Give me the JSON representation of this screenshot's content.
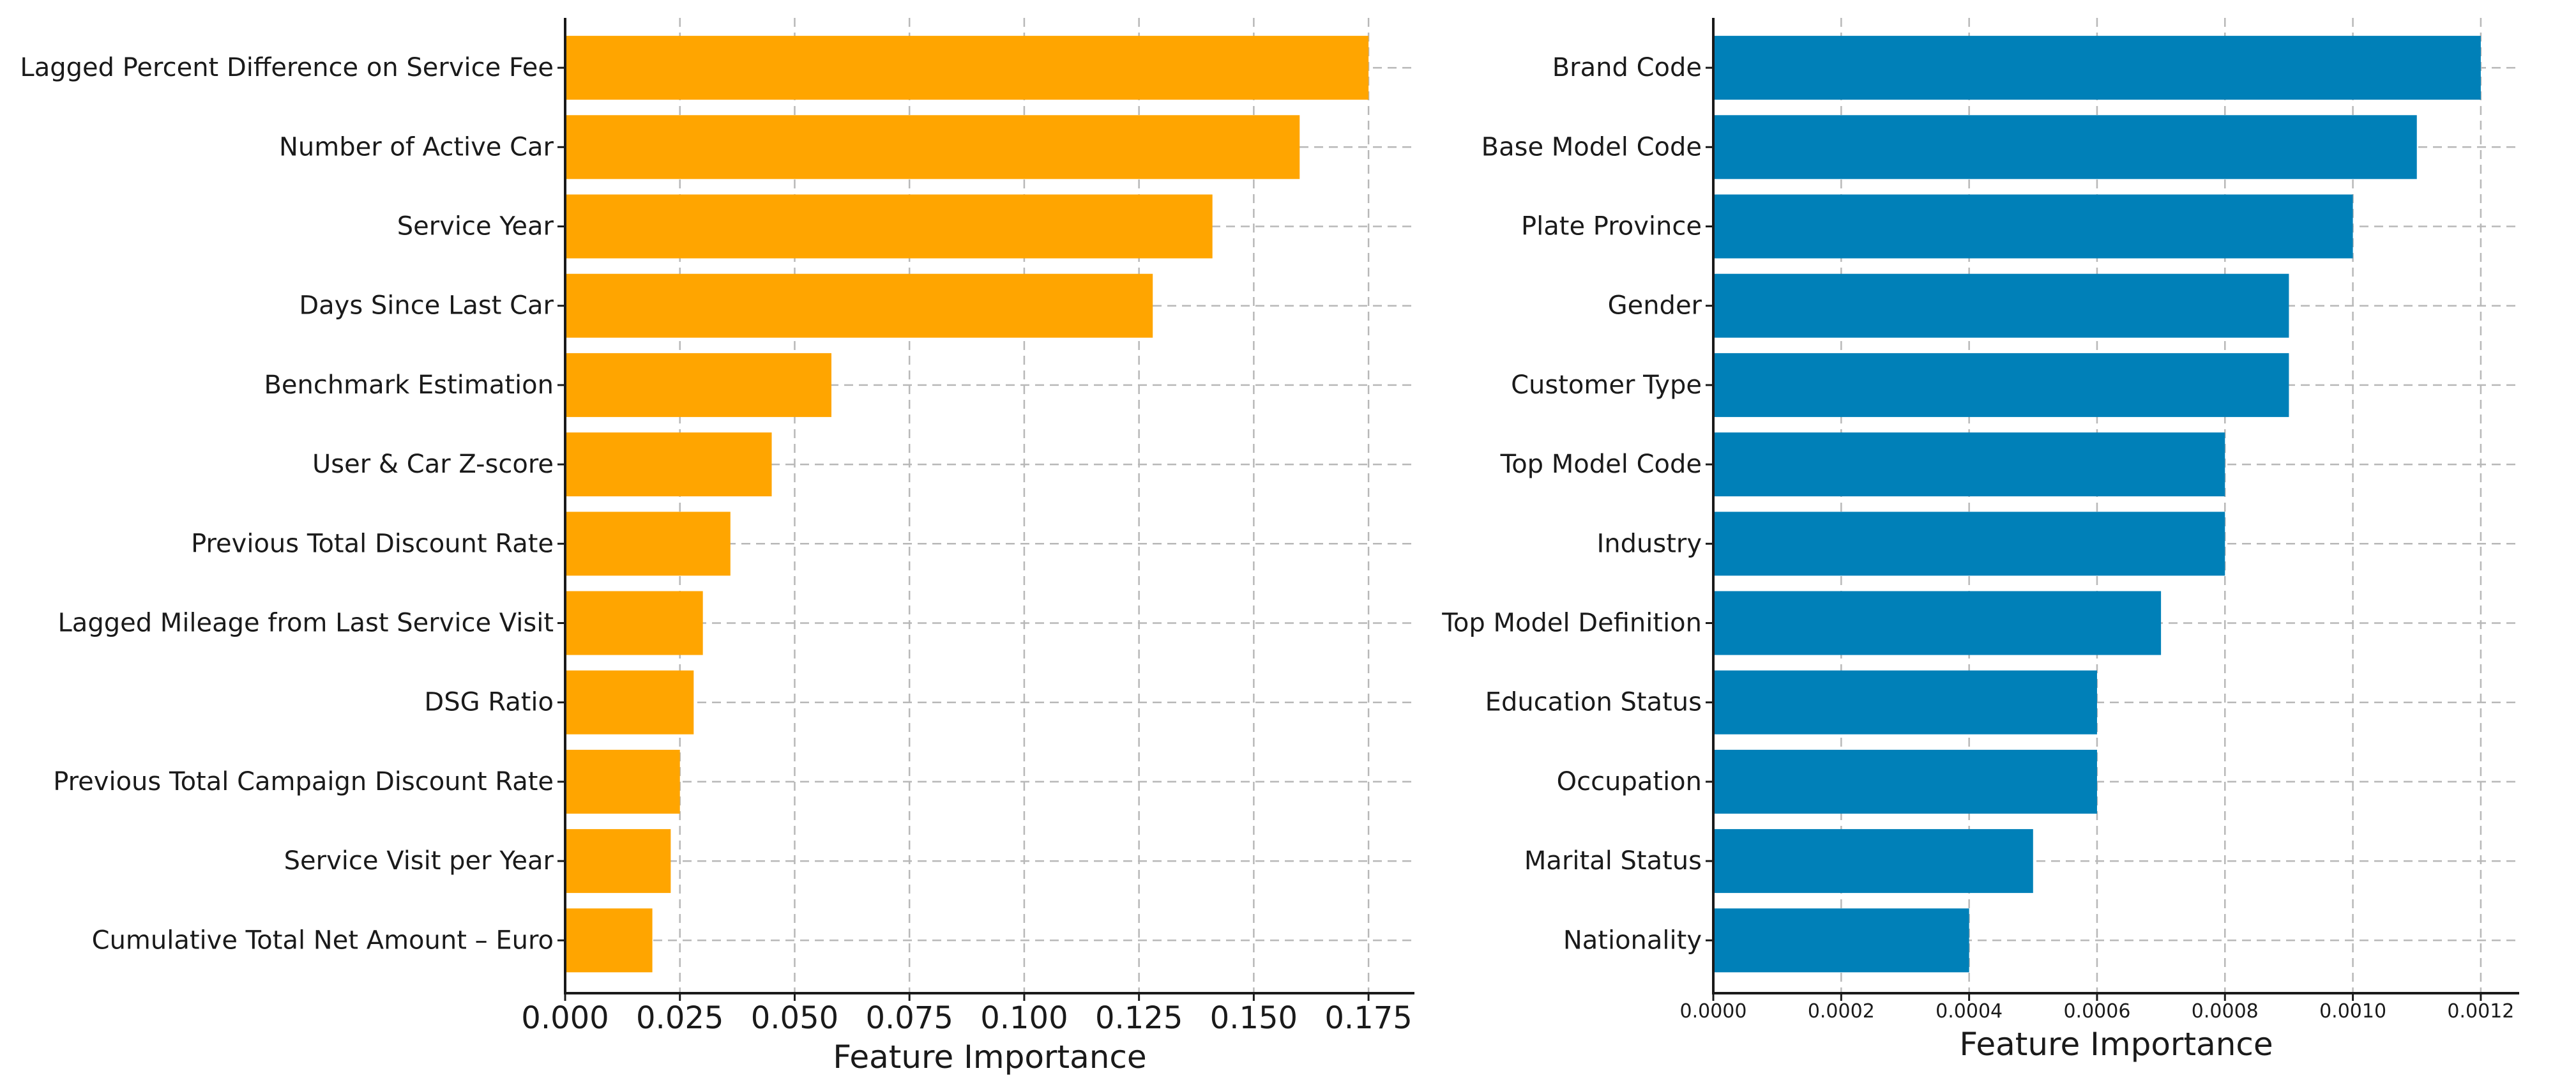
{
  "chart_data": [
    {
      "type": "bar",
      "orientation": "horizontal",
      "title": "",
      "xlabel": "Feature Importance",
      "ylabel": "",
      "color": "#FFA500",
      "xlim": [
        0,
        0.185
      ],
      "xticks": [
        "0.000",
        "0.025",
        "0.050",
        "0.075",
        "0.100",
        "0.125",
        "0.150",
        "0.175"
      ],
      "grid": true,
      "categories": [
        "Lagged Percent Difference on Service Fee",
        "Number of Active Car",
        "Service Year",
        "Days Since Last Car",
        "Benchmark Estimation",
        "User & Car Z-score",
        "Previous Total Discount Rate",
        "Lagged Mileage from Last Service Visit",
        "DSG Ratio",
        "Previous Total Campaign Discount Rate",
        "Service Visit per Year",
        "Cumulative Total Net Amount – Euro"
      ],
      "values": [
        0.175,
        0.16,
        0.141,
        0.128,
        0.058,
        0.045,
        0.036,
        0.03,
        0.028,
        0.025,
        0.023,
        0.019
      ]
    },
    {
      "type": "bar",
      "orientation": "horizontal",
      "title": "",
      "xlabel": "Feature Importance",
      "ylabel": "",
      "color": "#0080B8",
      "xlim": [
        0,
        0.00126
      ],
      "xticks": [
        "0.0000",
        "0.0002",
        "0.0004",
        "0.0006",
        "0.0008",
        "0.0010",
        "0.0012"
      ],
      "grid": true,
      "categories": [
        "Brand Code",
        "Base Model Code",
        "Plate Province",
        "Gender",
        "Customer Type",
        "Top Model Code",
        "Industry",
        "Top Model Definition",
        "Education Status",
        "Occupation",
        "Marital Status",
        "Nationality"
      ],
      "values": [
        0.0012,
        0.0011,
        0.001,
        0.0009,
        0.0009,
        0.0008,
        0.0008,
        0.0007,
        0.0006,
        0.0006,
        0.0005,
        0.0004
      ]
    }
  ]
}
